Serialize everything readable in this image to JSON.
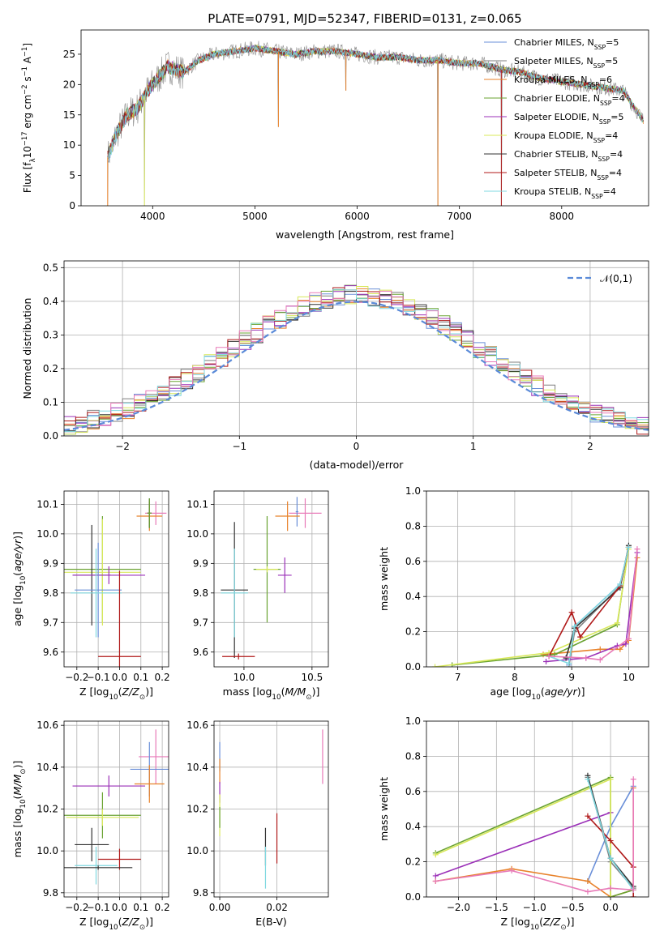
{
  "figure": {
    "background": "#ffffff"
  },
  "chart_data": [
    {
      "id": "spectrum",
      "type": "line",
      "title": "PLATE=0791, MJD=52347, FIBERID=0131, z=0.065",
      "xlabel": "wavelength [Angstrom, rest frame]",
      "ylabel": "Flux [f_λ10^-17 erg cm^-2 s^-1 A^-1]",
      "xlim": [
        3300,
        8850
      ],
      "ylim": [
        0,
        29
      ],
      "xticks": [
        4000,
        5000,
        6000,
        7000,
        8000
      ],
      "yticks": [
        0,
        5,
        10,
        15,
        20,
        25
      ],
      "grid": false,
      "legend_position": "top-right",
      "legend": [
        {
          "label": "Chabrier MILES, N_SSP=5",
          "color": "#6a8fd8"
        },
        {
          "label": "Salpeter MILES, N_SSP=5",
          "color": "#7f7f7f"
        },
        {
          "label": "Kroupa MILES, N_SSP=6",
          "color": "#e8822a"
        },
        {
          "label": "Chabrier ELODIE, N_SSP=4",
          "color": "#6aa332"
        },
        {
          "label": "Salpeter ELODIE, N_SSP=5",
          "color": "#9b30b8"
        },
        {
          "label": "Kroupa ELODIE, N_SSP=4",
          "color": "#d8e85a"
        },
        {
          "label": "Chabrier STELIB, N_SSP=4",
          "color": "#333333"
        },
        {
          "label": "Salpeter STELIB, N_SSP=4",
          "color": "#b01a1a"
        },
        {
          "label": "Kroupa STELIB, N_SSP=4",
          "color": "#7fd8e0"
        }
      ],
      "data_envelope": {
        "x": [
          3560,
          3650,
          3750,
          3850,
          3950,
          4050,
          4150,
          4300,
          4450,
          4600,
          4800,
          5000,
          5200,
          5400,
          5600,
          5800,
          6000,
          6200,
          6400,
          6600,
          6800,
          7000,
          7200,
          7400,
          7600,
          7800,
          8000,
          8200,
          8400,
          8600,
          8800
        ],
        "y": [
          8,
          12,
          15,
          16,
          19,
          21,
          23,
          22,
          24,
          25,
          25.5,
          26,
          25.5,
          25,
          25.5,
          25.5,
          25,
          24.5,
          24.5,
          24,
          24,
          23.5,
          23.5,
          22.5,
          22,
          21,
          20.5,
          20,
          19.5,
          19,
          14
        ]
      },
      "drops": [
        {
          "x": 3560,
          "y": 0
        },
        {
          "x": 3920,
          "y": 0
        },
        {
          "x": 6790,
          "y": 0
        },
        {
          "x": 7410,
          "y": 0
        },
        {
          "x": 5230,
          "y": 13
        },
        {
          "x": 5890,
          "y": 19
        }
      ]
    },
    {
      "id": "residuals",
      "type": "line",
      "xlabel": "(data-model)/error",
      "ylabel": "Normed distribution",
      "xlim": [
        -2.5,
        2.5
      ],
      "ylim": [
        0,
        0.52
      ],
      "xticks": [
        -2,
        -1,
        0,
        1,
        2
      ],
      "yticks": [
        0.0,
        0.1,
        0.2,
        0.3,
        0.4,
        0.5
      ],
      "grid": true,
      "legend_position": "top-right",
      "reference": {
        "label": "𝒩(0,1)",
        "color": "#5a8ad8",
        "style": "dashed",
        "mean": 0,
        "sigma": 1
      },
      "series_colors": [
        "#6a8fd8",
        "#7f7f7f",
        "#e8822a",
        "#6aa332",
        "#9b30b8",
        "#d8e85a",
        "#333333",
        "#b01a1a",
        "#7fd8e0",
        "#e87ab8"
      ]
    },
    {
      "id": "age-vs-Z",
      "type": "scatter",
      "xlabel": "Z [log10(Z/Z⊙)]",
      "ylabel": "age  [log10(age/yr)]",
      "xlim": [
        -0.26,
        0.23
      ],
      "ylim": [
        9.55,
        10.145
      ],
      "xticks": [
        -0.2,
        -0.1,
        0.0,
        0.1,
        0.2
      ],
      "yticks": [
        9.6,
        9.7,
        9.8,
        9.9,
        10.0,
        10.1
      ],
      "grid": true,
      "points": [
        {
          "x": 0.17,
          "y": 10.07,
          "xerr": 0.05,
          "yerr": 0.04,
          "color": "#e87ab8"
        },
        {
          "x": 0.14,
          "y": 10.06,
          "xerr": 0.06,
          "yerr": 0.05,
          "color": "#e8822a"
        },
        {
          "x": 0.14,
          "y": 10.07,
          "xerr": 0.01,
          "yerr": 0.05,
          "color": "#333333"
        },
        {
          "x": 0.14,
          "y": 10.07,
          "xerr": 0.01,
          "yerr": 0.05,
          "color": "#6aa332"
        },
        {
          "x": -0.08,
          "y": 9.88,
          "xerr": 0.18,
          "yerr": 0.18,
          "color": "#6aa332"
        },
        {
          "x": -0.08,
          "y": 9.87,
          "xerr": 0.18,
          "yerr": 0.18,
          "color": "#d8e85a"
        },
        {
          "x": -0.13,
          "y": 9.86,
          "xerr": 0.09,
          "yerr": 0.17,
          "color": "#333333"
        },
        {
          "x": -0.05,
          "y": 9.86,
          "xerr": 0.17,
          "yerr": 0.03,
          "color": "#9b30b8"
        },
        {
          "x": -0.1,
          "y": 9.81,
          "xerr": 0.11,
          "yerr": 0.16,
          "color": "#6a8fd8"
        },
        {
          "x": -0.11,
          "y": 9.8,
          "xerr": 0.12,
          "yerr": 0.15,
          "color": "#7fd8e0"
        },
        {
          "x": 0.0,
          "y": 9.585,
          "xerr": 0.1,
          "yerr": 0.29,
          "color": "#b01a1a"
        }
      ]
    },
    {
      "id": "age-vs-mass",
      "type": "scatter",
      "xlabel": "mass [log10(M/M⊙)]",
      "ylabel": "",
      "xlim": [
        9.78,
        10.62
      ],
      "ylim": [
        9.55,
        10.145
      ],
      "xticks": [
        10.0,
        10.5
      ],
      "yticks": [
        9.6,
        9.7,
        9.8,
        9.9,
        10.0,
        10.1
      ],
      "grid": true,
      "points": [
        {
          "x": 10.45,
          "y": 10.07,
          "xerr": 0.12,
          "yerr": 0.05,
          "color": "#e87ab8"
        },
        {
          "x": 10.39,
          "y": 10.075,
          "xerr": 0.01,
          "yerr": 0.05,
          "color": "#6a8fd8"
        },
        {
          "x": 10.32,
          "y": 10.06,
          "xerr": 0.09,
          "yerr": 0.05,
          "color": "#e8822a"
        },
        {
          "x": 10.17,
          "y": 9.88,
          "xerr": 0.1,
          "yerr": 0.18,
          "color": "#6aa332"
        },
        {
          "x": 10.17,
          "y": 9.88,
          "xerr": 0.08,
          "yerr": 0.01,
          "color": "#d8e85a"
        },
        {
          "x": 10.3,
          "y": 9.86,
          "xerr": 0.05,
          "yerr": 0.06,
          "color": "#9b30b8"
        },
        {
          "x": 9.93,
          "y": 9.81,
          "xerr": 0.1,
          "yerr": 0.23,
          "color": "#333333"
        },
        {
          "x": 9.93,
          "y": 9.8,
          "xerr": 0.1,
          "yerr": 0.15,
          "color": "#7fd8e0"
        },
        {
          "x": 9.96,
          "y": 9.585,
          "xerr": 0.12,
          "yerr": 0.01,
          "color": "#b01a1a"
        }
      ]
    },
    {
      "id": "massweight-vs-age",
      "type": "line",
      "xlabel": "age  [log10(age/yr)]",
      "ylabel": "mass weight",
      "xlim": [
        6.45,
        10.35
      ],
      "ylim": [
        0,
        1.0
      ],
      "xticks": [
        7,
        8,
        9,
        10
      ],
      "yticks": [
        0.0,
        0.2,
        0.4,
        0.6,
        0.8,
        1.0
      ],
      "grid": true,
      "series": [
        {
          "color": "#6a8fd8",
          "x": [
            8.95,
            9.05,
            9.85,
            10.0
          ],
          "y": [
            0.01,
            0.23,
            0.47,
            0.68
          ]
        },
        {
          "color": "#7f7f7f",
          "x": [
            8.95,
            9.05,
            9.85,
            10.0
          ],
          "y": [
            0.0,
            0.2,
            0.46,
            0.68
          ]
        },
        {
          "color": "#e8822a",
          "x": [
            8.5,
            9.5,
            9.85,
            10.0,
            10.15
          ],
          "y": [
            0.07,
            0.1,
            0.1,
            0.15,
            0.62
          ]
        },
        {
          "color": "#6aa332",
          "x": [
            6.9,
            8.7,
            9.8,
            10.0
          ],
          "y": [
            0.01,
            0.07,
            0.24,
            0.68
          ]
        },
        {
          "color": "#9b30b8",
          "x": [
            8.55,
            9.25,
            9.8,
            9.95,
            10.15
          ],
          "y": [
            0.03,
            0.05,
            0.12,
            0.13,
            0.65
          ]
        },
        {
          "color": "#d8e85a",
          "x": [
            6.6,
            8.6,
            9.8,
            10.0
          ],
          "y": [
            0.0,
            0.08,
            0.25,
            0.67
          ]
        },
        {
          "color": "#333333",
          "x": [
            8.9,
            9.05,
            9.85,
            10.0
          ],
          "y": [
            0.05,
            0.22,
            0.45,
            0.69
          ]
        },
        {
          "color": "#b01a1a",
          "x": [
            8.6,
            9.0,
            9.15,
            9.85,
            10.0
          ],
          "y": [
            0.06,
            0.31,
            0.17,
            0.46,
            0.68
          ]
        },
        {
          "color": "#7fd8e0",
          "x": [
            8.6,
            8.95,
            9.05,
            9.85,
            10.0
          ],
          "y": [
            0.06,
            0.02,
            0.23,
            0.47,
            0.68
          ]
        },
        {
          "color": "#e87ab8",
          "x": [
            8.6,
            9.25,
            9.5,
            10.0,
            10.15
          ],
          "y": [
            0.06,
            0.05,
            0.04,
            0.16,
            0.67
          ]
        }
      ]
    },
    {
      "id": "mass-vs-Z",
      "type": "scatter",
      "xlabel": "Z [log10(Z/Z⊙)]",
      "ylabel": "mass [log10(M/M⊙)]",
      "xlim": [
        -0.26,
        0.23
      ],
      "ylim": [
        9.78,
        10.62
      ],
      "xticks": [
        -0.2,
        -0.1,
        0.0,
        0.1,
        0.2
      ],
      "yticks": [
        9.8,
        10.0,
        10.2,
        10.4,
        10.6
      ],
      "grid": true,
      "points": [
        {
          "x": 0.17,
          "y": 10.45,
          "xerr": 0.08,
          "yerr": 0.13,
          "color": "#e87ab8"
        },
        {
          "x": 0.14,
          "y": 10.39,
          "xerr": 0.09,
          "yerr": 0.13,
          "color": "#6a8fd8"
        },
        {
          "x": 0.14,
          "y": 10.32,
          "xerr": 0.07,
          "yerr": 0.09,
          "color": "#e8822a"
        },
        {
          "x": -0.08,
          "y": 10.17,
          "xerr": 0.18,
          "yerr": 0.11,
          "color": "#6aa332"
        },
        {
          "x": -0.08,
          "y": 10.16,
          "xerr": 0.17,
          "yerr": 0.04,
          "color": "#d8e85a"
        },
        {
          "x": -0.05,
          "y": 10.31,
          "xerr": 0.17,
          "yerr": 0.05,
          "color": "#9b30b8"
        },
        {
          "x": -0.13,
          "y": 10.03,
          "xerr": 0.08,
          "yerr": 0.08,
          "color": "#333333"
        },
        {
          "x": -0.11,
          "y": 9.93,
          "xerr": 0.1,
          "yerr": 0.09,
          "color": "#7fd8e0"
        },
        {
          "x": 0.0,
          "y": 9.96,
          "xerr": 0.1,
          "yerr": 0.05,
          "color": "#b01a1a"
        },
        {
          "x": -0.1,
          "y": 9.92,
          "xerr": 0.16,
          "yerr": 0.01,
          "color": "#333333"
        }
      ]
    },
    {
      "id": "mass-vs-ebv",
      "type": "scatter",
      "xlabel": "E(B-V)",
      "ylabel": "",
      "xlim": [
        -0.002,
        0.038
      ],
      "ylim": [
        9.78,
        10.62
      ],
      "xticks": [
        0.0,
        0.02
      ],
      "yticks": [
        9.8,
        10.0,
        10.2,
        10.4,
        10.6
      ],
      "grid": true,
      "points": [
        {
          "x": 0.0,
          "y": 10.45,
          "xerr": 0,
          "yerr": 0.07,
          "color": "#6a8fd8"
        },
        {
          "x": 0.0,
          "y": 10.38,
          "xerr": 0,
          "yerr": 0.06,
          "color": "#e8822a"
        },
        {
          "x": 0.0,
          "y": 10.28,
          "xerr": 0,
          "yerr": 0.05,
          "color": "#9b30b8"
        },
        {
          "x": 0.0,
          "y": 10.17,
          "xerr": 0,
          "yerr": 0.1,
          "color": "#d8e85a"
        },
        {
          "x": 0.0,
          "y": 10.16,
          "xerr": 0,
          "yerr": 0.05,
          "color": "#6aa332"
        },
        {
          "x": 0.036,
          "y": 10.45,
          "xerr": 0,
          "yerr": 0.13,
          "color": "#e87ab8"
        },
        {
          "x": 0.02,
          "y": 10.06,
          "xerr": 0,
          "yerr": 0.12,
          "color": "#b01a1a"
        },
        {
          "x": 0.016,
          "y": 10.02,
          "xerr": 0,
          "yerr": 0.09,
          "color": "#333333"
        },
        {
          "x": 0.016,
          "y": 9.92,
          "xerr": 0,
          "yerr": 0.1,
          "color": "#7fd8e0"
        }
      ]
    },
    {
      "id": "massweight-vs-Z",
      "type": "line",
      "xlabel": "Z [log10(Z/Z⊙)]",
      "ylabel": "mass weight",
      "xlim": [
        -2.42,
        0.5
      ],
      "ylim": [
        0,
        1.0
      ],
      "xticks": [
        -2.0,
        -1.5,
        -1.0,
        -0.5,
        0.0
      ],
      "yticks": [
        0.0,
        0.2,
        0.4,
        0.6,
        0.8,
        1.0
      ],
      "grid": true,
      "series": [
        {
          "color": "#6a8fd8",
          "x": [
            -0.3,
            0.0,
            0.3
          ],
          "y": [
            0.09,
            0.4,
            0.63
          ]
        },
        {
          "color": "#7f7f7f",
          "x": [
            -0.3,
            0.0,
            0.3
          ],
          "y": [
            0.68,
            0.2,
            0.05
          ]
        },
        {
          "color": "#e8822a",
          "x": [
            -2.3,
            -1.3,
            -0.3,
            0.0,
            0.3,
            0.3
          ],
          "y": [
            0.09,
            0.16,
            0.09,
            0.0,
            0.04,
            0.62
          ]
        },
        {
          "color": "#6aa332",
          "x": [
            -2.3,
            0.0,
            0.0,
            0.3
          ],
          "y": [
            0.25,
            0.68,
            0.0,
            0.04
          ]
        },
        {
          "color": "#9b30b8",
          "x": [
            -2.3,
            0.0
          ],
          "y": [
            0.12,
            0.48
          ]
        },
        {
          "color": "#d8e85a",
          "x": [
            -2.3,
            0.0,
            0.0
          ],
          "y": [
            0.24,
            0.67,
            0.0
          ]
        },
        {
          "color": "#333333",
          "x": [
            -0.3,
            0.0,
            0.3
          ],
          "y": [
            0.69,
            0.22,
            0.06
          ]
        },
        {
          "color": "#b01a1a",
          "x": [
            -0.3,
            0.0,
            0.3,
            0.3
          ],
          "y": [
            0.46,
            0.32,
            0.17,
            0.0
          ]
        },
        {
          "color": "#7fd8e0",
          "x": [
            -0.3,
            0.0,
            0.3
          ],
          "y": [
            0.67,
            0.22,
            0.04
          ]
        },
        {
          "color": "#e87ab8",
          "x": [
            -2.3,
            -1.3,
            -0.3,
            0.0,
            0.3,
            0.3
          ],
          "y": [
            0.09,
            0.15,
            0.03,
            0.05,
            0.04,
            0.67
          ]
        }
      ]
    }
  ]
}
